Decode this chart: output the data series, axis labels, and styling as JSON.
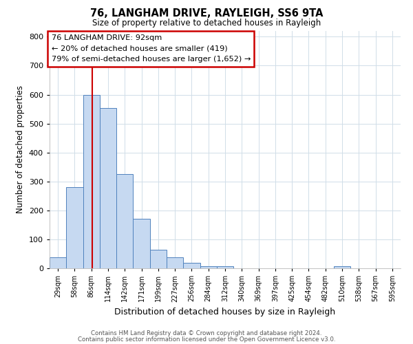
{
  "title": "76, LANGHAM DRIVE, RAYLEIGH, SS6 9TA",
  "subtitle": "Size of property relative to detached houses in Rayleigh",
  "xlabel": "Distribution of detached houses by size in Rayleigh",
  "ylabel": "Number of detached properties",
  "bin_labels": [
    "29sqm",
    "58sqm",
    "86sqm",
    "114sqm",
    "142sqm",
    "171sqm",
    "199sqm",
    "227sqm",
    "256sqm",
    "284sqm",
    "312sqm",
    "340sqm",
    "369sqm",
    "397sqm",
    "425sqm",
    "454sqm",
    "482sqm",
    "510sqm",
    "538sqm",
    "567sqm",
    "595sqm"
  ],
  "bar_values": [
    38,
    280,
    600,
    553,
    325,
    170,
    65,
    38,
    18,
    8,
    8,
    0,
    0,
    0,
    0,
    0,
    0,
    8,
    0,
    0,
    0
  ],
  "bar_color": "#c6d9f1",
  "bar_edge_color": "#4f81bd",
  "vline_color": "#cc0000",
  "vline_x_index": 2,
  "vline_x_offset": 0.06,
  "annotation_line1": "76 LANGHAM DRIVE: 92sqm",
  "annotation_line2": "← 20% of detached houses are smaller (419)",
  "annotation_line3": "79% of semi-detached houses are larger (1,652) →",
  "ylim": [
    0,
    820
  ],
  "yticks": [
    0,
    100,
    200,
    300,
    400,
    500,
    600,
    700,
    800
  ],
  "footer_line1": "Contains HM Land Registry data © Crown copyright and database right 2024.",
  "footer_line2": "Contains public sector information licensed under the Open Government Licence v3.0.",
  "bg_color": "#ffffff",
  "grid_color": "#d0dde8"
}
